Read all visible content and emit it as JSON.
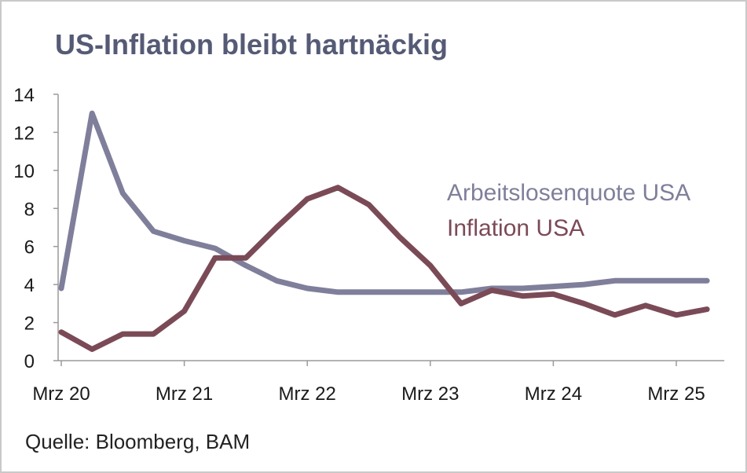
{
  "title": "US-Inflation bleibt hartnäckig",
  "source": "Quelle: Bloomberg, BAM",
  "colors": {
    "unemployment": "#7f7f9b",
    "inflation": "#7b4a57",
    "title": "#555a75",
    "axis": "#9a9a9a"
  },
  "chart_data": {
    "type": "line",
    "title": "US-Inflation bleibt hartnäckig",
    "xlabel": "",
    "ylabel": "",
    "ylim": [
      0,
      14
    ],
    "yticks": [
      0,
      2,
      4,
      6,
      8,
      10,
      12,
      14
    ],
    "xticks": [
      "Mrz 20",
      "Mrz 21",
      "Mrz 22",
      "Mrz 23",
      "Mrz 24",
      "Mrz 25"
    ],
    "x": [
      "Mrz 20",
      "Jun 20",
      "Sep 20",
      "Dez 20",
      "Mrz 21",
      "Jun 21",
      "Sep 21",
      "Dez 21",
      "Mrz 22",
      "Jun 22",
      "Sep 22",
      "Dez 22",
      "Mrz 23",
      "Jun 23",
      "Sep 23",
      "Dez 23",
      "Mrz 24",
      "Jun 24",
      "Sep 24",
      "Dez 24",
      "Mrz 25",
      "Jun 25"
    ],
    "grid": false,
    "legend": "inline-right",
    "series": [
      {
        "name": "Arbeitslosenquote USA",
        "values": [
          3.8,
          13.0,
          8.8,
          6.8,
          6.3,
          5.9,
          5.0,
          4.2,
          3.8,
          3.6,
          3.6,
          3.6,
          3.6,
          3.6,
          3.8,
          3.8,
          3.9,
          4.0,
          4.2,
          4.2,
          4.2,
          4.2
        ]
      },
      {
        "name": "Inflation USA",
        "values": [
          1.5,
          0.6,
          1.4,
          1.4,
          2.6,
          5.4,
          5.4,
          7.0,
          8.5,
          9.1,
          8.2,
          6.5,
          5.0,
          3.0,
          3.7,
          3.4,
          3.5,
          3.0,
          2.4,
          2.9,
          2.4,
          2.7
        ]
      }
    ]
  }
}
